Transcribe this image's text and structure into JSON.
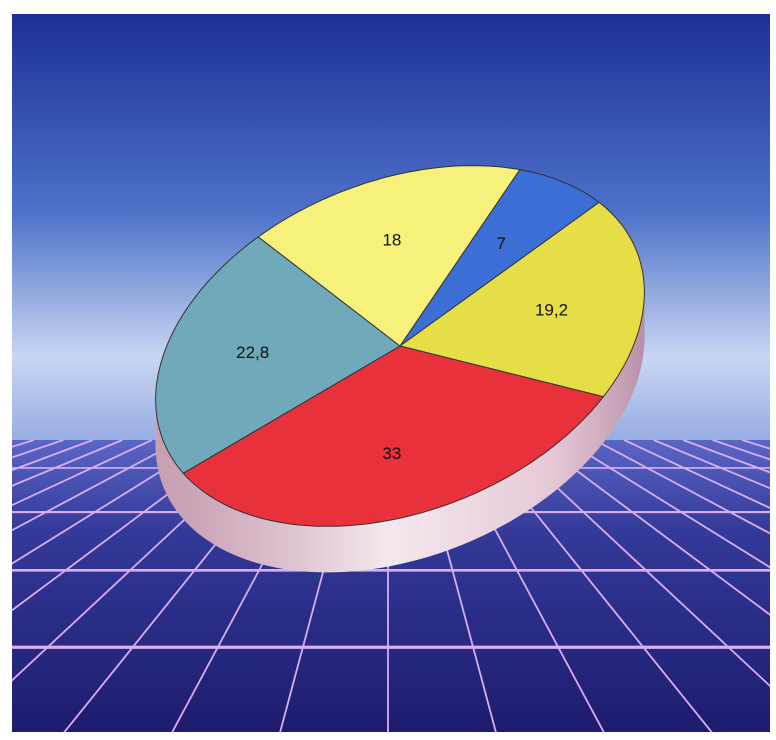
{
  "chart_data": {
    "type": "pie",
    "values": [
      7,
      19.2,
      33,
      22.8,
      18
    ],
    "value_labels": [
      "7",
      "19,2",
      "33",
      "22,8",
      "18"
    ],
    "colors": [
      "#3b6fd6",
      "#e6de46",
      "#e8313b",
      "#6fa9ba",
      "#f6f17a"
    ]
  }
}
